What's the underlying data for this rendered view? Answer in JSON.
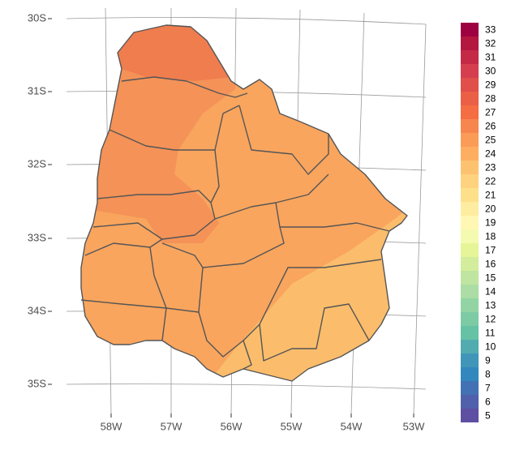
{
  "map": {
    "lat_labels": [
      "30S",
      "31S",
      "32S",
      "33S",
      "34S",
      "35S"
    ],
    "lon_labels": [
      "58W",
      "57W",
      "56W",
      "55W",
      "54W",
      "53W"
    ],
    "legend": {
      "values": [
        33,
        32,
        31,
        30,
        29,
        28,
        27,
        26,
        25,
        24,
        23,
        22,
        21,
        20,
        19,
        18,
        17,
        16,
        15,
        14,
        13,
        12,
        11,
        10,
        9,
        8,
        7,
        6,
        5
      ],
      "colors": [
        "#9e0142",
        "#b3173f",
        "#c42a46",
        "#d53e4f",
        "#e04f4a",
        "#ea5f46",
        "#f46d43",
        "#f7864e",
        "#fa9c58",
        "#fdae61",
        "#fdc270",
        "#fed27e",
        "#fee08b",
        "#feeca0",
        "#fff7b3",
        "#f4fab0",
        "#e6f598",
        "#d3ed9c",
        "#bfe5a0",
        "#abdda4",
        "#93d4a4",
        "#7ccba5",
        "#66c2a5",
        "#52acaf",
        "#3f96b8",
        "#3288bd",
        "#4272b3",
        "#5060aa",
        "#5e4fa2"
      ]
    }
  }
}
